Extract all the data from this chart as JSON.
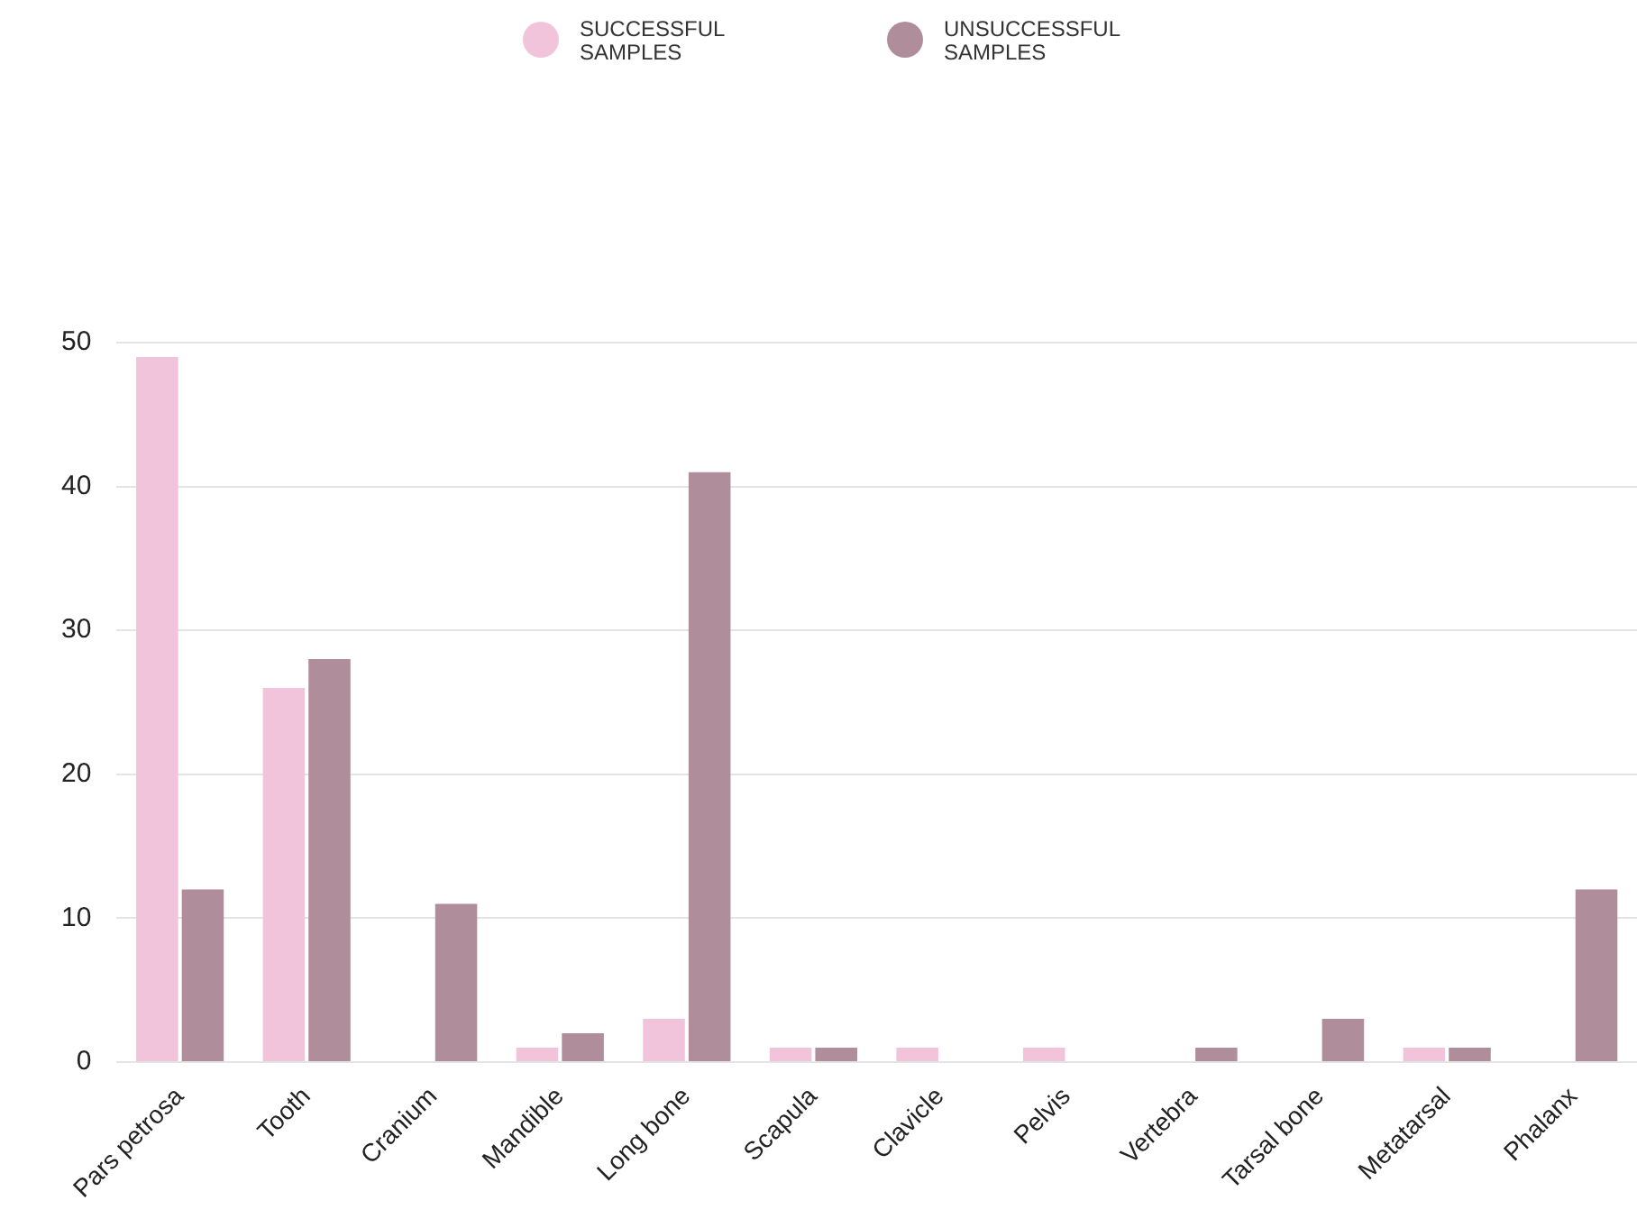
{
  "chart_data": {
    "type": "bar",
    "categories": [
      "Pars petrosa",
      "Tooth",
      "Cranium",
      "Mandible",
      "Long bone",
      "Scapula",
      "Clavicle",
      "Pelvis",
      "Vertebra",
      "Tarsal bone",
      "Metatarsal",
      "Phalanx"
    ],
    "series": [
      {
        "name": "SUCCESSFUL SAMPLES",
        "color": "#f2c4dc",
        "values": [
          49,
          26,
          0,
          1,
          3,
          1,
          1,
          1,
          0,
          0,
          1,
          0
        ]
      },
      {
        "name": "UNSUCCESSFUL SAMPLES",
        "color": "#b08d9b",
        "values": [
          12,
          28,
          11,
          2,
          41,
          1,
          0,
          0,
          1,
          3,
          1,
          12
        ]
      }
    ],
    "ylim": [
      0,
      50
    ],
    "yticks": [
      0,
      10,
      20,
      30,
      40,
      50
    ],
    "grid": "y",
    "legend": "top"
  }
}
